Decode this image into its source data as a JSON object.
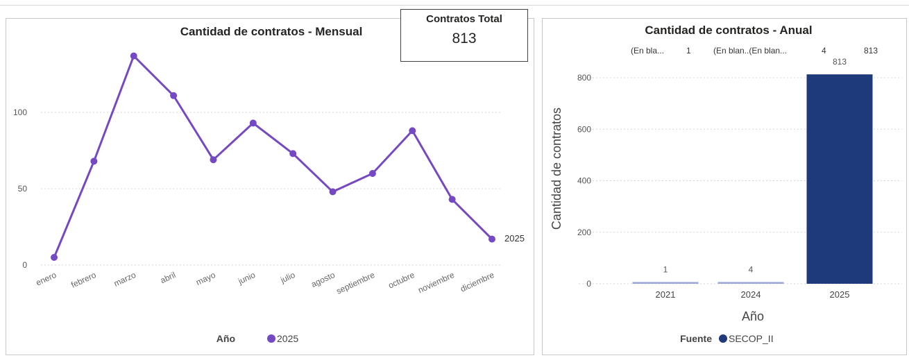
{
  "kpi": {
    "label": "Contratos Total",
    "value": "813"
  },
  "monthly": {
    "title": "Cantidad de contratos - Mensual",
    "legend_title": "Año",
    "series_label": "2025",
    "color": "#7548c4",
    "y_ticks": [
      "0",
      "50",
      "100"
    ]
  },
  "annual": {
    "title": "Cantidad de contratos - Anual",
    "ylabel": "Cantidad de contratos",
    "xlabel": "Año",
    "legend_title": "Fuente",
    "legend_series": "SECOP_II",
    "color": "#1f3a7a",
    "small_bar_color": "#9aa6d6",
    "y_ticks": [
      "0",
      "200",
      "400",
      "600",
      "800"
    ],
    "top_labels": [
      "(En bla...",
      "1",
      "(En blan..(En blan...",
      "4",
      "813"
    ]
  },
  "chart_data": [
    {
      "type": "line",
      "title": "Cantidad de contratos - Mensual",
      "xlabel": "",
      "ylabel": "",
      "categories": [
        "enero",
        "febrero",
        "marzo",
        "abril",
        "mayo",
        "junio",
        "julio",
        "agosto",
        "septiembre",
        "octubre",
        "noviembre",
        "diciembre"
      ],
      "series": [
        {
          "name": "2025",
          "values": [
            5,
            68,
            137,
            111,
            69,
            93,
            73,
            48,
            60,
            88,
            43,
            17
          ]
        }
      ],
      "ylim": [
        0,
        140
      ],
      "grid": true,
      "legend": "bottom"
    },
    {
      "type": "bar",
      "title": "Cantidad de contratos - Anual",
      "xlabel": "Año",
      "ylabel": "Cantidad de contratos",
      "categories": [
        "2021",
        "2024",
        "2025"
      ],
      "series": [
        {
          "name": "SECOP_II",
          "values": [
            1,
            4,
            813
          ]
        }
      ],
      "ylim": [
        0,
        830
      ],
      "grid": true,
      "legend": "bottom"
    }
  ]
}
